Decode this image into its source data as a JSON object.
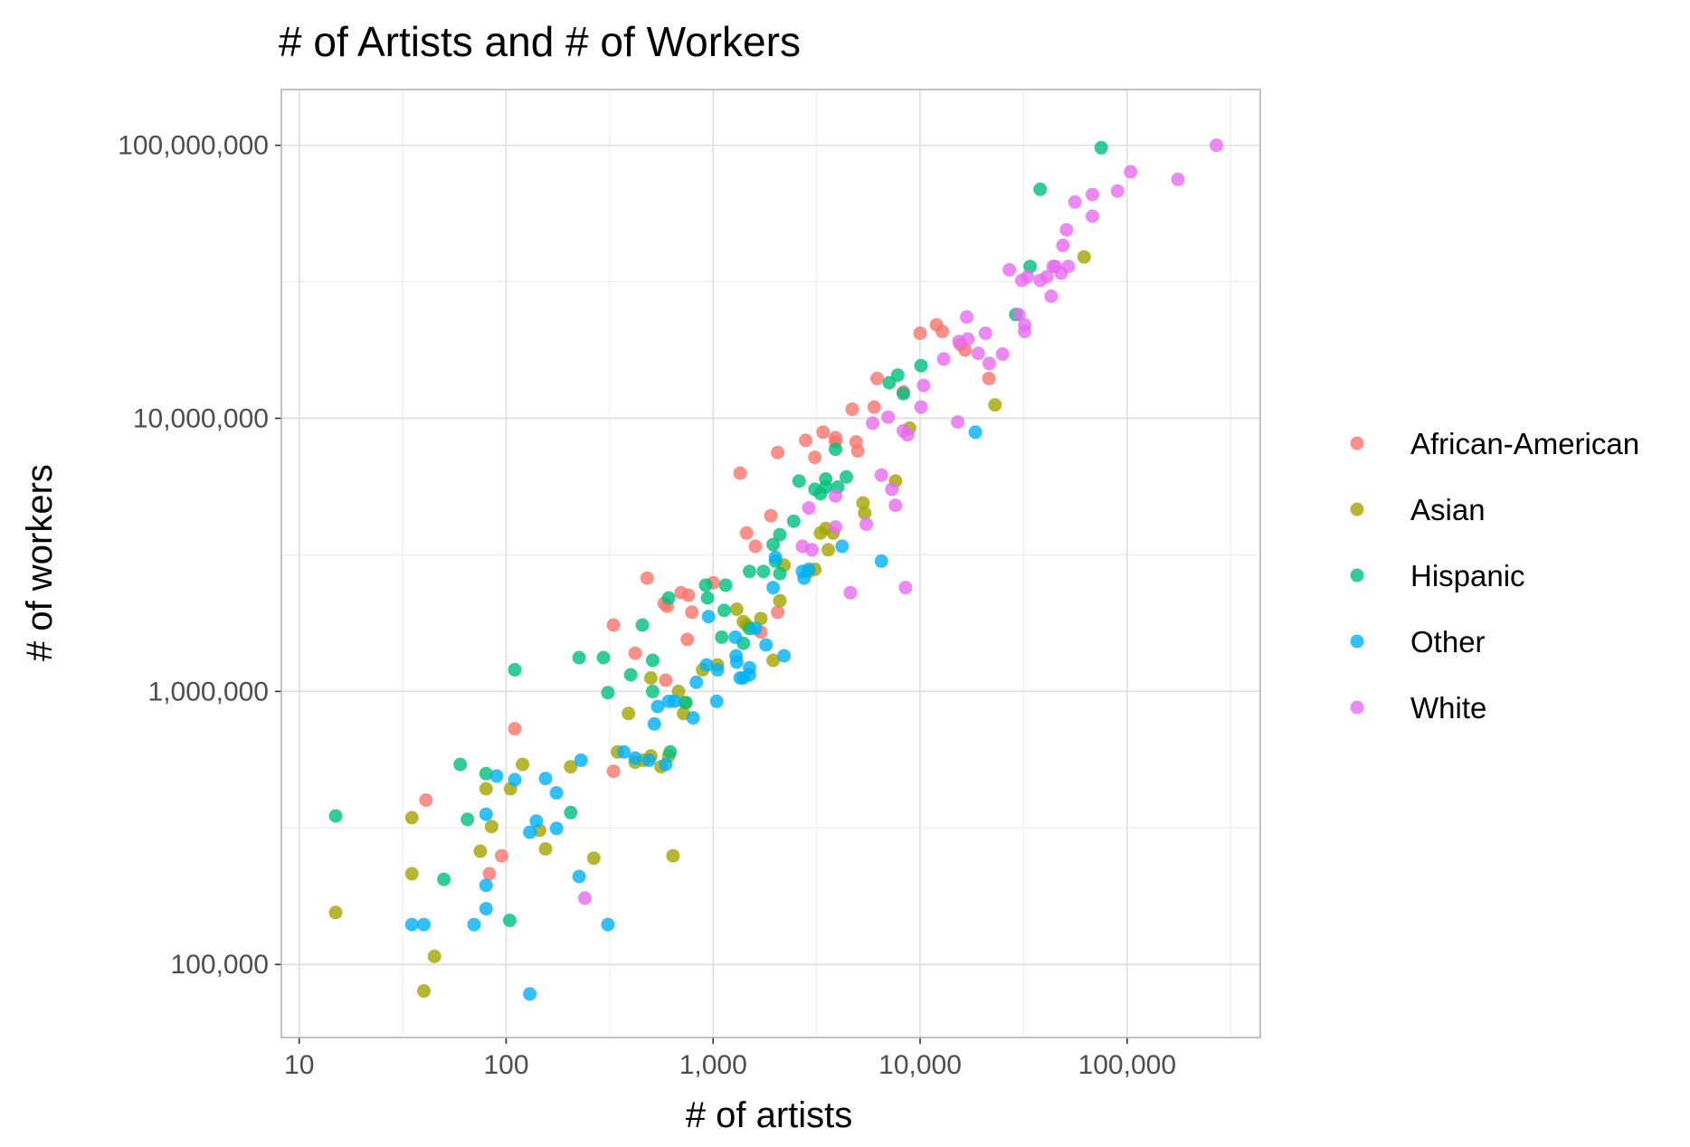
{
  "chart_data": {
    "type": "scatter",
    "title": "# of Artists and # of Workers",
    "xlabel": "# of artists",
    "ylabel": "# of workers",
    "x_scale": "log10",
    "y_scale": "log10",
    "xlim": [
      8.2,
      440000
    ],
    "ylim": [
      54000,
      160000000
    ],
    "x_ticks": [
      {
        "value": 10,
        "label": "10"
      },
      {
        "value": 100,
        "label": "100"
      },
      {
        "value": 1000,
        "label": "1,000"
      },
      {
        "value": 10000,
        "label": "10,000"
      },
      {
        "value": 100000,
        "label": "100,000"
      }
    ],
    "y_ticks": [
      {
        "value": 100000,
        "label": "100,000"
      },
      {
        "value": 1000000,
        "label": "1,000,000"
      },
      {
        "value": 10000000,
        "label": "10,000,000"
      },
      {
        "value": 100000000,
        "label": "100,000,000"
      }
    ],
    "grid": true,
    "legend_position": "right",
    "series": [
      {
        "name": "African-American",
        "color": "#F8766D",
        "points": [
          [
            41,
            400000
          ],
          [
            95,
            250000
          ],
          [
            83,
            215000
          ],
          [
            110,
            730000
          ],
          [
            330,
            510000
          ],
          [
            330,
            1750000
          ],
          [
            420,
            1380000
          ],
          [
            480,
            2600000
          ],
          [
            580,
            2100000
          ],
          [
            600,
            2050000
          ],
          [
            590,
            1100000
          ],
          [
            700,
            2300000
          ],
          [
            760,
            2250000
          ],
          [
            790,
            1950000
          ],
          [
            750,
            1550000
          ],
          [
            1000,
            2500000
          ],
          [
            1350,
            6300000
          ],
          [
            1450,
            3800000
          ],
          [
            1600,
            3400000
          ],
          [
            1900,
            4400000
          ],
          [
            2050,
            7500000
          ],
          [
            2050,
            1950000
          ],
          [
            1700,
            1650000
          ],
          [
            2800,
            8300000
          ],
          [
            3100,
            7200000
          ],
          [
            3400,
            8900000
          ],
          [
            3900,
            8500000
          ],
          [
            3900,
            8200000
          ],
          [
            4900,
            8200000
          ],
          [
            5000,
            7600000
          ],
          [
            4700,
            10800000
          ],
          [
            6000,
            11000000
          ],
          [
            6200,
            14000000
          ],
          [
            8300,
            12500000
          ],
          [
            10000,
            20500000
          ],
          [
            12000,
            22000000
          ],
          [
            12800,
            20800000
          ],
          [
            15700,
            18600000
          ],
          [
            16500,
            17800000
          ],
          [
            21500,
            14000000
          ]
        ]
      },
      {
        "name": "Asian",
        "color": "#A3A500",
        "points": [
          [
            15,
            155000
          ],
          [
            35,
            345000
          ],
          [
            35,
            215000
          ],
          [
            40,
            80000
          ],
          [
            45,
            107000
          ],
          [
            75,
            260000
          ],
          [
            80,
            440000
          ],
          [
            85,
            320000
          ],
          [
            105,
            440000
          ],
          [
            120,
            540000
          ],
          [
            145,
            310000
          ],
          [
            155,
            265000
          ],
          [
            205,
            530000
          ],
          [
            265,
            245000
          ],
          [
            345,
            600000
          ],
          [
            390,
            830000
          ],
          [
            420,
            550000
          ],
          [
            460,
            560000
          ],
          [
            500,
            1120000
          ],
          [
            500,
            580000
          ],
          [
            560,
            530000
          ],
          [
            610,
            580000
          ],
          [
            640,
            250000
          ],
          [
            680,
            1000000
          ],
          [
            730,
            910000
          ],
          [
            720,
            830000
          ],
          [
            890,
            1200000
          ],
          [
            1050,
            1250000
          ],
          [
            1300,
            2000000
          ],
          [
            1400,
            1800000
          ],
          [
            1450,
            1750000
          ],
          [
            1700,
            1850000
          ],
          [
            1950,
            1300000
          ],
          [
            2100,
            2150000
          ],
          [
            2200,
            2900000
          ],
          [
            2900,
            2750000
          ],
          [
            3100,
            2800000
          ],
          [
            3300,
            3800000
          ],
          [
            3500,
            3950000
          ],
          [
            3600,
            3300000
          ],
          [
            3800,
            3800000
          ],
          [
            5300,
            4900000
          ],
          [
            5400,
            4500000
          ],
          [
            7600,
            5900000
          ],
          [
            8900,
            9200000
          ],
          [
            23000,
            11200000
          ],
          [
            62000,
            39000000
          ]
        ]
      },
      {
        "name": "Hispanic",
        "color": "#00BF7D",
        "points": [
          [
            15,
            350000
          ],
          [
            50,
            205000
          ],
          [
            60,
            540000
          ],
          [
            65,
            340000
          ],
          [
            80,
            500000
          ],
          [
            104,
            145000
          ],
          [
            110,
            1200000
          ],
          [
            205,
            360000
          ],
          [
            225,
            1330000
          ],
          [
            295,
            1330000
          ],
          [
            310,
            990000
          ],
          [
            400,
            1150000
          ],
          [
            455,
            1750000
          ],
          [
            510,
            1300000
          ],
          [
            510,
            1000000
          ],
          [
            610,
            2200000
          ],
          [
            620,
            600000
          ],
          [
            740,
            910000
          ],
          [
            920,
            2450000
          ],
          [
            940,
            2200000
          ],
          [
            1100,
            1580000
          ],
          [
            1130,
            1980000
          ],
          [
            1150,
            2450000
          ],
          [
            1400,
            1500000
          ],
          [
            1500,
            2750000
          ],
          [
            1500,
            1700000
          ],
          [
            1750,
            2750000
          ],
          [
            1950,
            3450000
          ],
          [
            2000,
            3000000
          ],
          [
            2100,
            2700000
          ],
          [
            2100,
            3750000
          ],
          [
            2450,
            4200000
          ],
          [
            2600,
            5900000
          ],
          [
            3100,
            5500000
          ],
          [
            3300,
            5300000
          ],
          [
            3500,
            6000000
          ],
          [
            3500,
            5600000
          ],
          [
            3900,
            7700000
          ],
          [
            4000,
            5600000
          ],
          [
            4400,
            6100000
          ],
          [
            7100,
            13500000
          ],
          [
            7800,
            14400000
          ],
          [
            8300,
            12300000
          ],
          [
            10100,
            15600000
          ],
          [
            29000,
            24000000
          ],
          [
            34000,
            36000000
          ],
          [
            38000,
            69000000
          ],
          [
            75000,
            98000000
          ]
        ]
      },
      {
        "name": "Other",
        "color": "#00B0F6",
        "points": [
          [
            35,
            140000
          ],
          [
            40,
            140000
          ],
          [
            70,
            140000
          ],
          [
            80,
            195000
          ],
          [
            80,
            160000
          ],
          [
            80,
            355000
          ],
          [
            90,
            490000
          ],
          [
            110,
            475000
          ],
          [
            130,
            78000
          ],
          [
            130,
            305000
          ],
          [
            140,
            335000
          ],
          [
            155,
            480000
          ],
          [
            175,
            425000
          ],
          [
            175,
            315000
          ],
          [
            225,
            210000
          ],
          [
            230,
            560000
          ],
          [
            310,
            140000
          ],
          [
            370,
            600000
          ],
          [
            420,
            570000
          ],
          [
            490,
            560000
          ],
          [
            520,
            760000
          ],
          [
            540,
            880000
          ],
          [
            590,
            540000
          ],
          [
            610,
            920000
          ],
          [
            650,
            920000
          ],
          [
            800,
            800000
          ],
          [
            830,
            1080000
          ],
          [
            930,
            1250000
          ],
          [
            950,
            1880000
          ],
          [
            1040,
            920000
          ],
          [
            1050,
            1200000
          ],
          [
            1280,
            1580000
          ],
          [
            1290,
            1350000
          ],
          [
            1300,
            1280000
          ],
          [
            1350,
            1120000
          ],
          [
            1400,
            1120000
          ],
          [
            1500,
            1150000
          ],
          [
            1500,
            1220000
          ],
          [
            1600,
            1700000
          ],
          [
            1800,
            1480000
          ],
          [
            1950,
            2400000
          ],
          [
            2000,
            3100000
          ],
          [
            2200,
            1350000
          ],
          [
            2700,
            2750000
          ],
          [
            2750,
            2600000
          ],
          [
            2900,
            2800000
          ],
          [
            4200,
            3400000
          ],
          [
            6500,
            3000000
          ],
          [
            18500,
            8900000
          ]
        ]
      },
      {
        "name": "White",
        "color": "#E76BF3",
        "points": [
          [
            240,
            175000
          ],
          [
            2700,
            3400000
          ],
          [
            2900,
            4700000
          ],
          [
            3000,
            3300000
          ],
          [
            3900,
            5200000
          ],
          [
            3900,
            4000000
          ],
          [
            4600,
            2300000
          ],
          [
            5500,
            4100000
          ],
          [
            5900,
            9600000
          ],
          [
            6500,
            6200000
          ],
          [
            7000,
            10100000
          ],
          [
            7300,
            5500000
          ],
          [
            7600,
            4800000
          ],
          [
            8300,
            9000000
          ],
          [
            8500,
            2400000
          ],
          [
            8700,
            8700000
          ],
          [
            10100,
            11000000
          ],
          [
            10400,
            13200000
          ],
          [
            13000,
            16500000
          ],
          [
            15200,
            9700000
          ],
          [
            15400,
            19100000
          ],
          [
            16800,
            23500000
          ],
          [
            17000,
            19500000
          ],
          [
            19100,
            17300000
          ],
          [
            20700,
            20500000
          ],
          [
            21600,
            15900000
          ],
          [
            25000,
            17200000
          ],
          [
            27000,
            35000000
          ],
          [
            30000,
            24000000
          ],
          [
            31000,
            32000000
          ],
          [
            32000,
            20800000
          ],
          [
            32000,
            22000000
          ],
          [
            33000,
            33000000
          ],
          [
            38000,
            32000000
          ],
          [
            41000,
            33000000
          ],
          [
            43000,
            28000000
          ],
          [
            44000,
            36000000
          ],
          [
            45000,
            36000000
          ],
          [
            48000,
            34000000
          ],
          [
            49000,
            43000000
          ],
          [
            51000,
            49000000
          ],
          [
            52000,
            36000000
          ],
          [
            56000,
            62000000
          ],
          [
            68000,
            55000000
          ],
          [
            68000,
            66000000
          ],
          [
            90000,
            68000000
          ],
          [
            104000,
            80000000
          ],
          [
            176000,
            75000000
          ],
          [
            270000,
            100000000
          ]
        ]
      }
    ]
  }
}
